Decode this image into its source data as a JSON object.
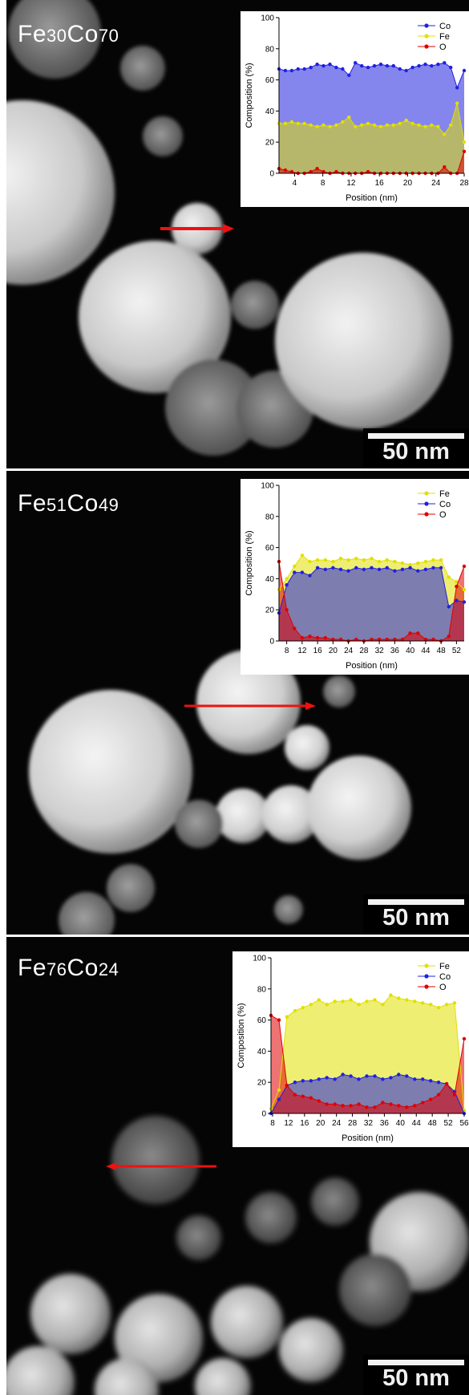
{
  "panels": [
    {
      "sample": {
        "element_a": "Fe",
        "sub_a": "30",
        "element_b": "Co",
        "sub_b": "70"
      },
      "scale_bar_label": "50 nm",
      "chart_data": {
        "type": "area",
        "xlabel": "Position (nm)",
        "ylabel": "Composition (%)",
        "xlim": [
          1.8,
          28
        ],
        "ylim": [
          0,
          100
        ],
        "xticks": [
          4,
          8,
          12,
          16,
          20,
          24,
          28
        ],
        "yticks": [
          0,
          20,
          40,
          60,
          80,
          100
        ],
        "legend_position": "top-right",
        "x": [
          1.8,
          2.7,
          3.6,
          4.5,
          5.4,
          6.3,
          7.2,
          8.1,
          9.0,
          9.9,
          10.8,
          11.7,
          12.6,
          13.5,
          14.4,
          15.3,
          16.2,
          17.1,
          18.0,
          18.9,
          19.8,
          20.7,
          21.6,
          22.5,
          23.4,
          24.3,
          25.2,
          26.1,
          27.0,
          28.0
        ],
        "series": [
          {
            "name": "Co",
            "color": "#2020e0",
            "values": [
              67,
              66,
              66,
              67,
              67,
              68,
              70,
              69,
              70,
              68,
              67,
              63,
              71,
              69,
              68,
              69,
              70,
              69,
              69,
              67,
              66,
              68,
              69,
              70,
              69,
              70,
              71,
              68,
              55,
              66
            ]
          },
          {
            "name": "Fe",
            "color": "#e0e000",
            "values": [
              32,
              32,
              33,
              32,
              32,
              31,
              30,
              31,
              30,
              31,
              33,
              36,
              30,
              31,
              32,
              31,
              30,
              31,
              31,
              32,
              34,
              32,
              31,
              30,
              31,
              30,
              25,
              31,
              45,
              20
            ]
          },
          {
            "name": "O",
            "color": "#e00000",
            "values": [
              3,
              2,
              1,
              0,
              0,
              1,
              3,
              1,
              0,
              1,
              0,
              0,
              0,
              0,
              1,
              0,
              0,
              0,
              0,
              0,
              0,
              0,
              0,
              0,
              0,
              0,
              4,
              0,
              0,
              14
            ]
          }
        ]
      }
    },
    {
      "sample": {
        "element_a": "Fe",
        "sub_a": "51",
        "element_b": "Co",
        "sub_b": "49"
      },
      "scale_bar_label": "50 nm",
      "chart_data": {
        "type": "area",
        "xlabel": "Position (nm)",
        "ylabel": "Composition (%)",
        "xlim": [
          6,
          54
        ],
        "ylim": [
          0,
          100
        ],
        "xticks": [
          8,
          12,
          16,
          20,
          24,
          28,
          32,
          36,
          40,
          44,
          48,
          52
        ],
        "yticks": [
          0,
          20,
          40,
          60,
          80,
          100
        ],
        "legend_position": "top-right",
        "x": [
          6,
          8,
          10,
          12,
          14,
          16,
          18,
          20,
          22,
          24,
          26,
          28,
          30,
          32,
          34,
          36,
          38,
          40,
          42,
          44,
          46,
          48,
          50,
          52,
          54
        ],
        "series": [
          {
            "name": "Fe",
            "color": "#e0e000",
            "values": [
              33,
              40,
              48,
              55,
              51,
              52,
              52,
              51,
              53,
              52,
              53,
              52,
              53,
              51,
              52,
              51,
              50,
              49,
              50,
              51,
              52,
              52,
              41,
              38,
              33
            ]
          },
          {
            "name": "Co",
            "color": "#2020e0",
            "values": [
              18,
              36,
              44,
              44,
              42,
              47,
              46,
              47,
              46,
              45,
              47,
              46,
              47,
              46,
              47,
              45,
              46,
              47,
              45,
              46,
              47,
              47,
              22,
              26,
              25
            ]
          },
          {
            "name": "O",
            "color": "#e00000",
            "values": [
              51,
              20,
              8,
              2,
              3,
              2,
              2,
              1,
              1,
              0,
              1,
              0,
              1,
              1,
              1,
              1,
              1,
              5,
              5,
              1,
              1,
              0,
              3,
              35,
              48
            ]
          }
        ]
      }
    },
    {
      "sample": {
        "element_a": "Fe",
        "sub_a": "76",
        "element_b": "Co",
        "sub_b": "24"
      },
      "scale_bar_label": "50 nm",
      "chart_data": {
        "type": "area",
        "xlabel": "Position (nm)",
        "ylabel": "Composition (%)",
        "xlim": [
          7.6,
          56
        ],
        "ylim": [
          0,
          100
        ],
        "xticks": [
          8,
          12,
          16,
          20,
          24,
          28,
          32,
          36,
          40,
          44,
          48,
          52,
          56
        ],
        "yticks": [
          0,
          20,
          40,
          60,
          80,
          100
        ],
        "legend_position": "top-right",
        "x": [
          7.6,
          9.6,
          11.6,
          13.6,
          15.6,
          17.6,
          19.6,
          21.6,
          23.6,
          25.6,
          27.6,
          29.6,
          31.6,
          33.6,
          35.6,
          37.6,
          39.6,
          41.6,
          43.6,
          45.6,
          47.6,
          49.6,
          51.6,
          53.6,
          56
        ],
        "series": [
          {
            "name": "Fe",
            "color": "#e0e000",
            "values": [
              3,
              15,
              62,
              66,
              68,
              70,
              73,
              70,
              72,
              72,
              73,
              70,
              72,
              73,
              70,
              76,
              74,
              73,
              72,
              71,
              70,
              68,
              70,
              71,
              2
            ]
          },
          {
            "name": "Co",
            "color": "#2020e0",
            "values": [
              0,
              9,
              18,
              20,
              21,
              21,
              22,
              23,
              22,
              25,
              24,
              22,
              24,
              24,
              22,
              23,
              25,
              24,
              22,
              22,
              21,
              20,
              19,
              14,
              0
            ]
          },
          {
            "name": "O",
            "color": "#e00000",
            "values": [
              63,
              60,
              18,
              12,
              11,
              10,
              8,
              6,
              6,
              5,
              5,
              6,
              4,
              4,
              7,
              6,
              5,
              4,
              5,
              7,
              9,
              12,
              19,
              12,
              48
            ]
          }
        ]
      }
    }
  ]
}
